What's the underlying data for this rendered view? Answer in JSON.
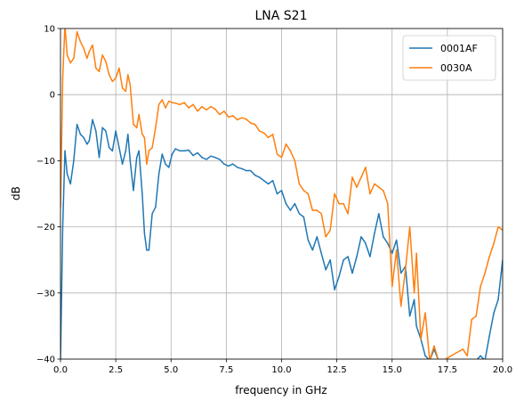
{
  "chart_data": {
    "type": "line",
    "title": "LNA S21",
    "xlabel": "frequency in GHz",
    "ylabel": "dB",
    "xlim": [
      0,
      20
    ],
    "ylim": [
      -40,
      10
    ],
    "x_ticks": [
      "0.0",
      "2.5",
      "5.0",
      "7.5",
      "10.0",
      "12.5",
      "15.0",
      "17.5",
      "20.0"
    ],
    "y_ticks": [
      "10",
      "0",
      "−10",
      "−20",
      "−30",
      "−40"
    ],
    "grid": true,
    "legend_position": "top-right",
    "series": [
      {
        "name": "0001AF",
        "color": "#1f77b4",
        "x": [
          0.0,
          0.1,
          0.2,
          0.3,
          0.45,
          0.6,
          0.75,
          0.9,
          1.05,
          1.2,
          1.3,
          1.45,
          1.6,
          1.75,
          1.9,
          2.05,
          2.2,
          2.35,
          2.5,
          2.65,
          2.8,
          2.95,
          3.05,
          3.15,
          3.3,
          3.45,
          3.55,
          3.7,
          3.8,
          3.9,
          4.0,
          4.15,
          4.3,
          4.45,
          4.6,
          4.75,
          4.9,
          5.05,
          5.2,
          5.4,
          5.6,
          5.8,
          6.0,
          6.2,
          6.4,
          6.6,
          6.8,
          7.0,
          7.2,
          7.4,
          7.6,
          7.8,
          8.0,
          8.2,
          8.4,
          8.6,
          8.8,
          9.0,
          9.2,
          9.4,
          9.6,
          9.8,
          10.0,
          10.2,
          10.4,
          10.6,
          10.8,
          11.0,
          11.2,
          11.4,
          11.6,
          11.8,
          12.0,
          12.2,
          12.4,
          12.6,
          12.8,
          13.0,
          13.2,
          13.4,
          13.6,
          13.8,
          14.0,
          14.2,
          14.4,
          14.6,
          14.8,
          15.0,
          15.2,
          15.4,
          15.6,
          15.8,
          16.0,
          16.1,
          16.3,
          16.5,
          16.7,
          16.9,
          17.1,
          17.3,
          18.2,
          18.4,
          18.6,
          18.8,
          19.0,
          19.2,
          19.4,
          19.6,
          19.8,
          20.0
        ],
        "y": [
          -40,
          -20,
          -8.5,
          -12,
          -13.5,
          -10,
          -4.5,
          -6,
          -6.5,
          -7.5,
          -7,
          -3.8,
          -5.5,
          -9.5,
          -5,
          -5.5,
          -8,
          -8.5,
          -5.5,
          -8,
          -10.5,
          -8.5,
          -6,
          -10,
          -14.5,
          -9.5,
          -8.5,
          -15,
          -21,
          -23.5,
          -23.5,
          -18,
          -17,
          -12,
          -9,
          -10.5,
          -11,
          -9,
          -8.2,
          -8.5,
          -8.5,
          -8.4,
          -9.2,
          -8.8,
          -9.5,
          -9.8,
          -9.3,
          -9.5,
          -9.8,
          -10.5,
          -10.8,
          -10.5,
          -11,
          -11.2,
          -11.5,
          -11.5,
          -12.2,
          -12.5,
          -13,
          -13.5,
          -13,
          -15,
          -14.5,
          -16.5,
          -17.5,
          -16.5,
          -18,
          -18.5,
          -22,
          -23.5,
          -21.5,
          -24,
          -26.5,
          -25,
          -29.5,
          -27.5,
          -25,
          -24.5,
          -27,
          -24.5,
          -21.5,
          -22.5,
          -24.5,
          -21,
          -18,
          -21.5,
          -22.5,
          -24,
          -22,
          -27,
          -26,
          -33.5,
          -31,
          -35,
          -37,
          -39.5,
          -40.2,
          -38.5,
          -40.2,
          -40.2,
          -40.2,
          -40.2,
          -40.2,
          -40.2,
          -39.5,
          -40.2,
          -36.5,
          -33,
          -31,
          -25
        ]
      },
      {
        "name": "0030A",
        "color": "#ff7f0e",
        "x": [
          0.0,
          0.1,
          0.2,
          0.3,
          0.45,
          0.6,
          0.75,
          0.9,
          1.05,
          1.2,
          1.3,
          1.45,
          1.6,
          1.75,
          1.9,
          2.05,
          2.2,
          2.35,
          2.5,
          2.65,
          2.8,
          2.95,
          3.05,
          3.15,
          3.3,
          3.45,
          3.55,
          3.7,
          3.8,
          3.9,
          4.0,
          4.15,
          4.3,
          4.45,
          4.6,
          4.75,
          4.9,
          5.05,
          5.2,
          5.4,
          5.6,
          5.8,
          6.0,
          6.2,
          6.4,
          6.6,
          6.8,
          7.0,
          7.2,
          7.4,
          7.6,
          7.8,
          8.0,
          8.2,
          8.4,
          8.6,
          8.8,
          9.0,
          9.2,
          9.4,
          9.6,
          9.8,
          10.0,
          10.2,
          10.4,
          10.6,
          10.8,
          11.0,
          11.2,
          11.4,
          11.6,
          11.8,
          12.0,
          12.2,
          12.4,
          12.6,
          12.8,
          13.0,
          13.2,
          13.4,
          13.6,
          13.8,
          14.0,
          14.2,
          14.4,
          14.6,
          14.8,
          15.0,
          15.2,
          15.4,
          15.6,
          15.8,
          16.0,
          16.1,
          16.3,
          16.5,
          16.7,
          16.9,
          17.1,
          17.3,
          18.2,
          18.4,
          18.6,
          18.8,
          19.0,
          19.2,
          19.4,
          19.6,
          19.8,
          20.0
        ],
        "y": [
          -17,
          2.5,
          10.5,
          6,
          4.8,
          5.5,
          9.5,
          8,
          7,
          5.5,
          6.5,
          7.5,
          4,
          3.5,
          6,
          5,
          3,
          2,
          2.5,
          4,
          1,
          0.5,
          3,
          1.5,
          -4.5,
          -5,
          -3,
          -6,
          -6.5,
          -10.5,
          -8.5,
          -8,
          -5,
          -1.5,
          -0.8,
          -2,
          -1,
          -1.2,
          -1.3,
          -1.5,
          -1.2,
          -2,
          -1.5,
          -2.5,
          -1.8,
          -2.3,
          -1.8,
          -2.2,
          -3,
          -2.5,
          -3.4,
          -3.2,
          -3.8,
          -3.5,
          -3.7,
          -4.3,
          -4.5,
          -5.5,
          -5.8,
          -6.5,
          -6,
          -9,
          -9.5,
          -7.5,
          -8.5,
          -10,
          -13.5,
          -14.5,
          -15,
          -17.5,
          -17.5,
          -18,
          -21.5,
          -20.5,
          -15,
          -16.5,
          -16.5,
          -18,
          -12.5,
          -14,
          -12.5,
          -11,
          -15,
          -13.5,
          -14,
          -14.5,
          -16.5,
          -29,
          -23.5,
          -32,
          -26.5,
          -20,
          -30,
          -24,
          -37,
          -33,
          -40.2,
          -38,
          -40.2,
          -40.2,
          -38.5,
          -39.5,
          -34,
          -33.5,
          -29,
          -27,
          -24.5,
          -22.5,
          -20,
          -20.5
        ]
      }
    ]
  }
}
